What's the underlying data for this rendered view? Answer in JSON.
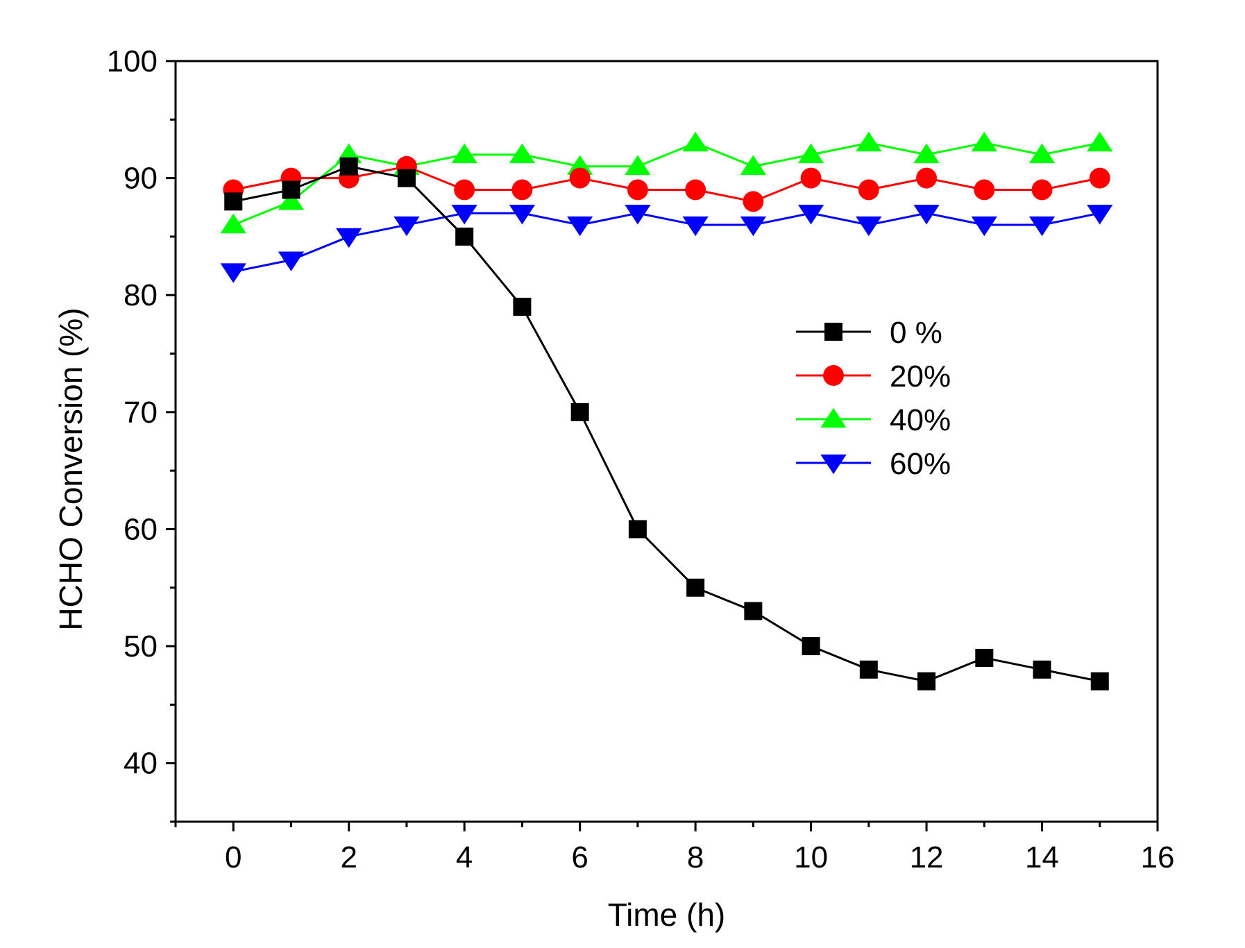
{
  "chart_data": {
    "type": "line",
    "title": "",
    "xlabel": "Time (h)",
    "ylabel": "HCHO Conversion (%)",
    "xlim": [
      -1,
      16
    ],
    "ylim": [
      35,
      100
    ],
    "x_ticks": [
      0,
      2,
      4,
      6,
      8,
      10,
      12,
      14,
      16
    ],
    "x_tick_labels": [
      "0",
      "2",
      "4",
      "6",
      "8",
      "10",
      "12",
      "14",
      "16"
    ],
    "x_minor_ticks": [
      -1,
      1,
      3,
      5,
      7,
      9,
      11,
      13,
      15
    ],
    "y_ticks": [
      40,
      50,
      60,
      70,
      80,
      90,
      100
    ],
    "y_tick_labels": [
      "40",
      "50",
      "60",
      "70",
      "80",
      "90",
      "100"
    ],
    "y_minor_ticks": [
      35,
      45,
      55,
      65,
      75,
      85,
      95
    ],
    "grid": false,
    "legend_position": "center-right",
    "x": [
      0,
      1,
      2,
      3,
      4,
      5,
      6,
      7,
      8,
      9,
      10,
      11,
      12,
      13,
      14,
      15
    ],
    "series": [
      {
        "name": "0 %",
        "color": "#000000",
        "marker": "square",
        "values": [
          88,
          89,
          91,
          90,
          85,
          79,
          70,
          60,
          55,
          53,
          50,
          48,
          47,
          49,
          48,
          47
        ]
      },
      {
        "name": "20%",
        "color": "#ff0000",
        "marker": "circle",
        "values": [
          89,
          90,
          90,
          91,
          89,
          89,
          90,
          89,
          89,
          88,
          90,
          89,
          90,
          89,
          89,
          90
        ]
      },
      {
        "name": "40%",
        "color": "#00ff00",
        "marker": "triangle-up",
        "values": [
          86,
          88,
          92,
          91,
          92,
          92,
          91,
          91,
          93,
          91,
          92,
          93,
          92,
          93,
          92,
          93
        ]
      },
      {
        "name": "60%",
        "color": "#0000ff",
        "marker": "triangle-down",
        "values": [
          82,
          83,
          85,
          86,
          87,
          87,
          86,
          87,
          86,
          86,
          87,
          86,
          87,
          86,
          86,
          87
        ]
      }
    ]
  }
}
